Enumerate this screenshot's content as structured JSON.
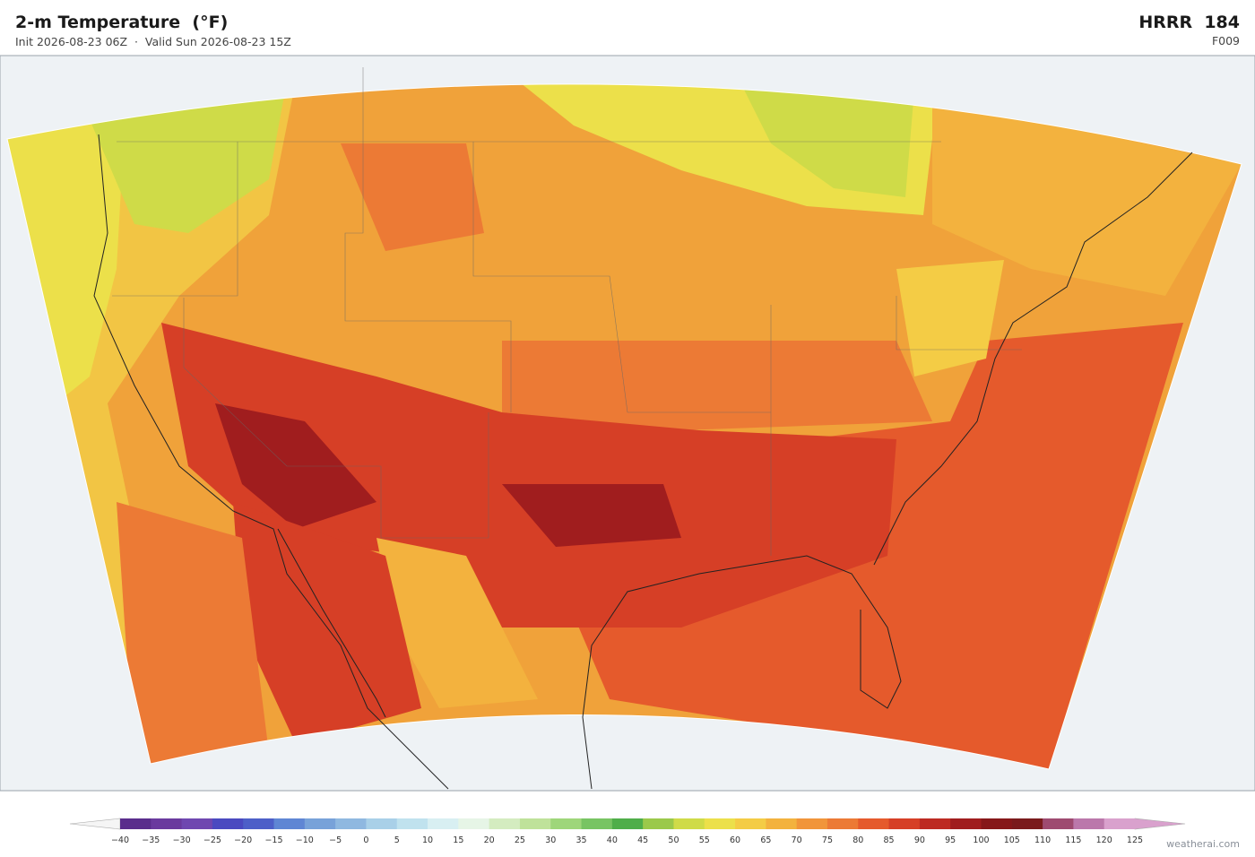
{
  "header": {
    "title": "2-m Temperature  (°F)",
    "subtitle": "Init 2026-08-23 06Z  ·  Valid Sun 2026-08-23 15Z",
    "model": "HRRR  184",
    "forecast": "F009"
  },
  "colorbar": {
    "labels": [
      "−40",
      "−35",
      "−30",
      "−25",
      "−20",
      "−15",
      "−10",
      "−5",
      "0",
      "5",
      "10",
      "15",
      "20",
      "25",
      "30",
      "35",
      "40",
      "45",
      "50",
      "55",
      "60",
      "65",
      "70",
      "75",
      "80",
      "85",
      "90",
      "95",
      "100",
      "105",
      "110",
      "115",
      "120",
      "125"
    ],
    "colors": [
      "#5a2d8c",
      "#6a3a9e",
      "#6f47b0",
      "#4a49c0",
      "#4d5fc8",
      "#5f86d4",
      "#78a2d9",
      "#8fb8e0",
      "#a9d0e8",
      "#c0e2ee",
      "#d8eff2",
      "#e6f5e6",
      "#d4ecc0",
      "#bfe29a",
      "#9ed67a",
      "#78c463",
      "#4fae49",
      "#9bc94a",
      "#cfdb48",
      "#ece04a",
      "#f4cc45",
      "#f3b23e",
      "#f1953a",
      "#ec7a35",
      "#e55a2c",
      "#d63f26",
      "#bd2a22",
      "#a01d1e",
      "#861719",
      "#7a1a1c",
      "#9e4a70",
      "#bb78ab",
      "#d9a1cd"
    ],
    "under_color": "#f5f5f5",
    "over_color": "#d9a1cd"
  },
  "footer": {
    "credit": "weatherai.com"
  }
}
